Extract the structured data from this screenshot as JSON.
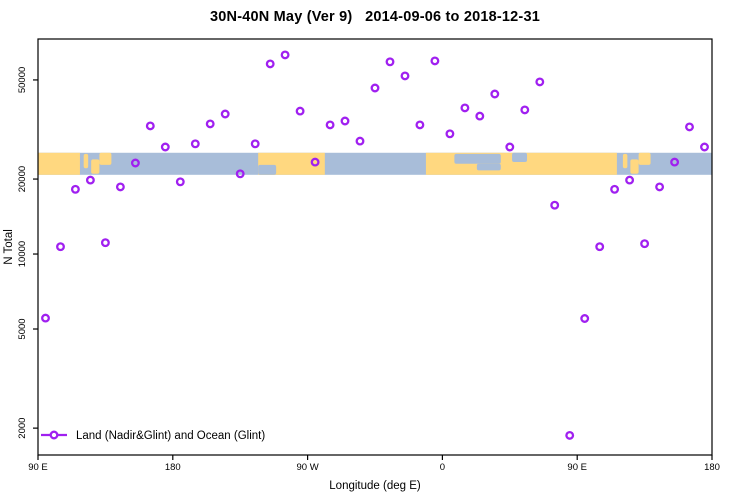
{
  "figure": {
    "title": "30N-40N May (Ver 9)   2014-09-06 to 2018-12-31"
  },
  "chart_data": {
    "type": "scatter",
    "title": "30N-40N May (Ver 9)   2014-09-06 to 2018-12-31",
    "xlabel": "Longitude (deg E)",
    "ylabel": "N Total",
    "x_axis": {
      "note": "longitude axis runs 90E eastward around the globe to 180 again (450 deg total)",
      "domain_deg": [
        90,
        540
      ],
      "ticks": [
        {
          "deg": 90,
          "label": "90 E"
        },
        {
          "deg": 180,
          "label": "180"
        },
        {
          "deg": 270,
          "label": "90 W"
        },
        {
          "deg": 360,
          "label": "0"
        },
        {
          "deg": 450,
          "label": "90 E"
        },
        {
          "deg": 540,
          "label": "180"
        }
      ]
    },
    "y_axis": {
      "scale": "log",
      "domain": [
        1560,
        73000
      ],
      "ticks": [
        {
          "value": 2000,
          "label": "2000"
        },
        {
          "value": 5000,
          "label": "5000"
        },
        {
          "value": 10000,
          "label": "10000"
        },
        {
          "value": 20000,
          "label": "20000"
        },
        {
          "value": 50000,
          "label": "50000"
        }
      ],
      "grid": false
    },
    "legend": {
      "label": "Land (Nadir&Glint) and Ocean (Glint)",
      "position": "bottom-left",
      "marker": "line-through-open-circle"
    },
    "series": [
      {
        "name": "Land (Nadir&Glint) and Ocean (Glint)",
        "marker": "open-circle",
        "color": "#A020F0",
        "points": [
          {
            "lon_deg": 95,
            "n": 5530
          },
          {
            "lon_deg": 105,
            "n": 10700
          },
          {
            "lon_deg": 115,
            "n": 18200
          },
          {
            "lon_deg": 125,
            "n": 19800
          },
          {
            "lon_deg": 135,
            "n": 11100
          },
          {
            "lon_deg": 145,
            "n": 18600
          },
          {
            "lon_deg": 155,
            "n": 23200
          },
          {
            "lon_deg": 165,
            "n": 32700
          },
          {
            "lon_deg": 175,
            "n": 26900
          },
          {
            "lon_deg": 185,
            "n": 19500
          },
          {
            "lon_deg": 195,
            "n": 27700
          },
          {
            "lon_deg": 205,
            "n": 33300
          },
          {
            "lon_deg": 215,
            "n": 36500
          },
          {
            "lon_deg": 225,
            "n": 21000
          },
          {
            "lon_deg": 235,
            "n": 27700
          },
          {
            "lon_deg": 245,
            "n": 58000
          },
          {
            "lon_deg": 255,
            "n": 63000
          },
          {
            "lon_deg": 265,
            "n": 37500
          },
          {
            "lon_deg": 275,
            "n": 23400
          },
          {
            "lon_deg": 285,
            "n": 33000
          },
          {
            "lon_deg": 295,
            "n": 34200
          },
          {
            "lon_deg": 305,
            "n": 28400
          },
          {
            "lon_deg": 315,
            "n": 46400
          },
          {
            "lon_deg": 325,
            "n": 59100
          },
          {
            "lon_deg": 335,
            "n": 51900
          },
          {
            "lon_deg": 345,
            "n": 33000
          },
          {
            "lon_deg": 355,
            "n": 59600
          },
          {
            "lon_deg": 365,
            "n": 30400
          },
          {
            "lon_deg": 375,
            "n": 38600
          },
          {
            "lon_deg": 385,
            "n": 35800
          },
          {
            "lon_deg": 395,
            "n": 43900
          },
          {
            "lon_deg": 405,
            "n": 26900
          },
          {
            "lon_deg": 415,
            "n": 37900
          },
          {
            "lon_deg": 425,
            "n": 49100
          },
          {
            "lon_deg": 435,
            "n": 15700
          },
          {
            "lon_deg": 445,
            "n": 1870
          },
          {
            "lon_deg": 455,
            "n": 5510
          },
          {
            "lon_deg": 465,
            "n": 10700
          },
          {
            "lon_deg": 475,
            "n": 18200
          },
          {
            "lon_deg": 485,
            "n": 19800
          },
          {
            "lon_deg": 495,
            "n": 11000
          },
          {
            "lon_deg": 505,
            "n": 18600
          },
          {
            "lon_deg": 515,
            "n": 23400
          },
          {
            "lon_deg": 525,
            "n": 32400
          },
          {
            "lon_deg": 535,
            "n": 26900
          }
        ]
      }
    ],
    "map_band": {
      "description": "30N-40N latitude land/ocean strip overlay",
      "land_color": "#FFD880",
      "ocean_color": "#A8BDD9",
      "n_range": [
        20800,
        25500
      ],
      "land_segments_deg": [
        [
          90,
          118
        ],
        [
          237,
          281.5
        ],
        [
          349,
          476.5
        ]
      ],
      "islands": [
        {
          "deg": [
            120.5,
            123.5
          ],
          "frac": [
            0.05,
            0.7
          ]
        },
        {
          "deg": [
            125.5,
            131.0
          ],
          "frac": [
            0.3,
            0.95
          ]
        },
        {
          "deg": [
            131.0,
            139.0
          ],
          "frac": [
            0.0,
            0.55
          ]
        },
        {
          "deg": [
            480.5,
            483.5
          ],
          "frac": [
            0.05,
            0.7
          ]
        },
        {
          "deg": [
            485.5,
            491.0
          ],
          "frac": [
            0.3,
            0.95
          ]
        },
        {
          "deg": [
            491.0,
            499.0
          ],
          "frac": [
            0.0,
            0.55
          ]
        }
      ],
      "seas": [
        {
          "deg": [
            237.0,
            249.0
          ],
          "frac": [
            0.55,
            1.0
          ]
        },
        {
          "deg": [
            368.0,
            399.0
          ],
          "frac": [
            0.05,
            0.5
          ]
        },
        {
          "deg": [
            383.0,
            399.0
          ],
          "frac": [
            0.5,
            0.8
          ]
        },
        {
          "deg": [
            406.5,
            416.5
          ],
          "frac": [
            0.0,
            0.42
          ]
        }
      ]
    }
  }
}
